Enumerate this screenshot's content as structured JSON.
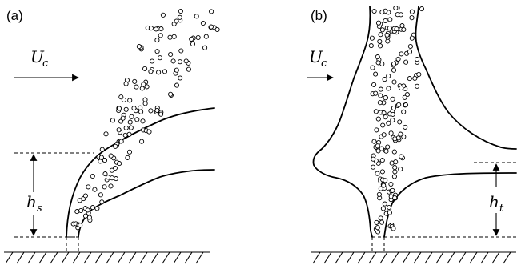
{
  "panels": [
    {
      "id": "a",
      "label": "(a)",
      "velocity_symbol": "U",
      "velocity_subscript": "c",
      "height_symbol": "h",
      "height_subscript": "s"
    },
    {
      "id": "b",
      "label": "(b)",
      "velocity_symbol": "U",
      "velocity_subscript": "c",
      "height_symbol": "h",
      "height_subscript": "t"
    }
  ]
}
